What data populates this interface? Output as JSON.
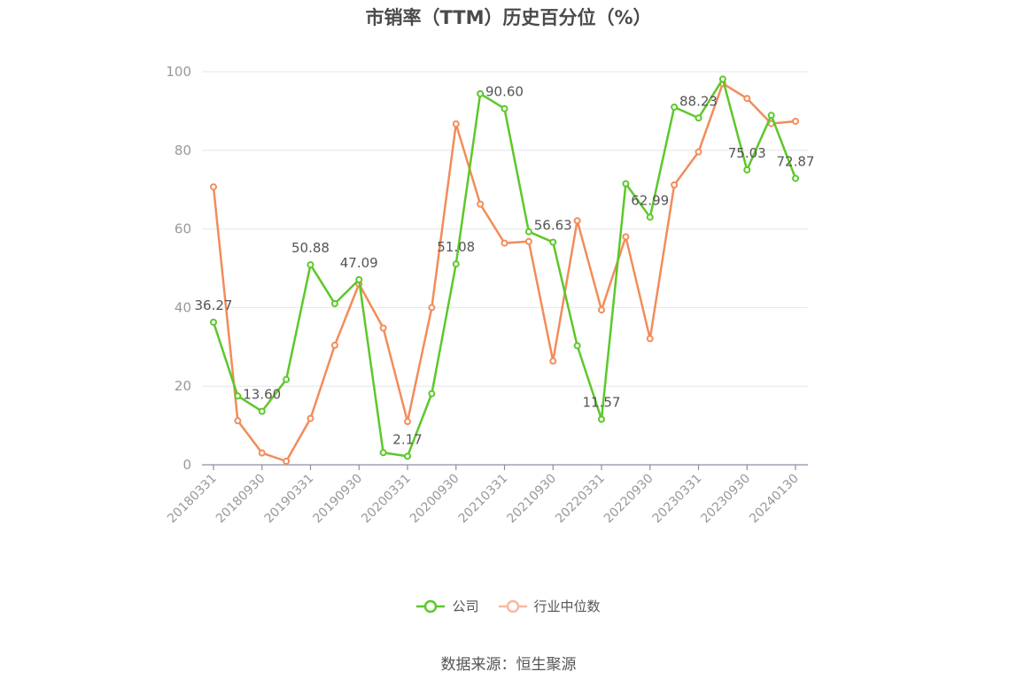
{
  "chart_data": {
    "type": "line",
    "title": "市销率（TTM）历史百分位（%）",
    "source": "数据来源：恒生聚源",
    "ylim": [
      0,
      100
    ],
    "yticks": [
      0,
      20,
      40,
      60,
      80,
      100
    ],
    "grid": true,
    "legend_position": "bottom",
    "x": [
      "20180331",
      "20180630",
      "20180930",
      "20181231",
      "20190331",
      "20190630",
      "20190930",
      "20191231",
      "20200331",
      "20200630",
      "20200930",
      "20201231",
      "20210331",
      "20210630",
      "20210930",
      "20211231",
      "20220331",
      "20220630",
      "20220930",
      "20221231",
      "20230331",
      "20230630",
      "20230930",
      "20231231",
      "20240130"
    ],
    "xtick_labels": [
      "20180331",
      "20180930",
      "20190331",
      "20190930",
      "20200331",
      "20200930",
      "20210331",
      "20210930",
      "20220331",
      "20220930",
      "20230331",
      "20230930",
      "20240130"
    ],
    "series": [
      {
        "name": "公司",
        "color": "#5cc82a",
        "values": [
          36.27,
          17.5,
          13.6,
          21.7,
          50.88,
          41.0,
          47.09,
          3.1,
          2.17,
          18.1,
          51.08,
          94.4,
          90.6,
          59.3,
          56.63,
          30.3,
          11.57,
          71.5,
          62.99,
          91.0,
          88.23,
          98.1,
          75.03,
          88.9,
          72.87
        ],
        "labels": [
          "36.27",
          null,
          "13.60",
          null,
          "50.88",
          null,
          "47.09",
          null,
          "2.17",
          null,
          "51.08",
          null,
          "90.60",
          null,
          "56.63",
          null,
          "11.57",
          null,
          "62.99",
          null,
          "88.23",
          null,
          "75.03",
          null,
          "72.87"
        ]
      },
      {
        "name": "行业中位数",
        "color": "#f28c5a",
        "values": [
          70.7,
          11.2,
          3.0,
          0.9,
          11.8,
          30.4,
          46.0,
          34.8,
          11.0,
          40.0,
          86.7,
          66.3,
          56.4,
          56.8,
          26.4,
          62.1,
          39.4,
          58.0,
          32.1,
          71.2,
          79.6,
          97.0,
          93.2,
          86.8,
          87.4
        ]
      }
    ]
  }
}
